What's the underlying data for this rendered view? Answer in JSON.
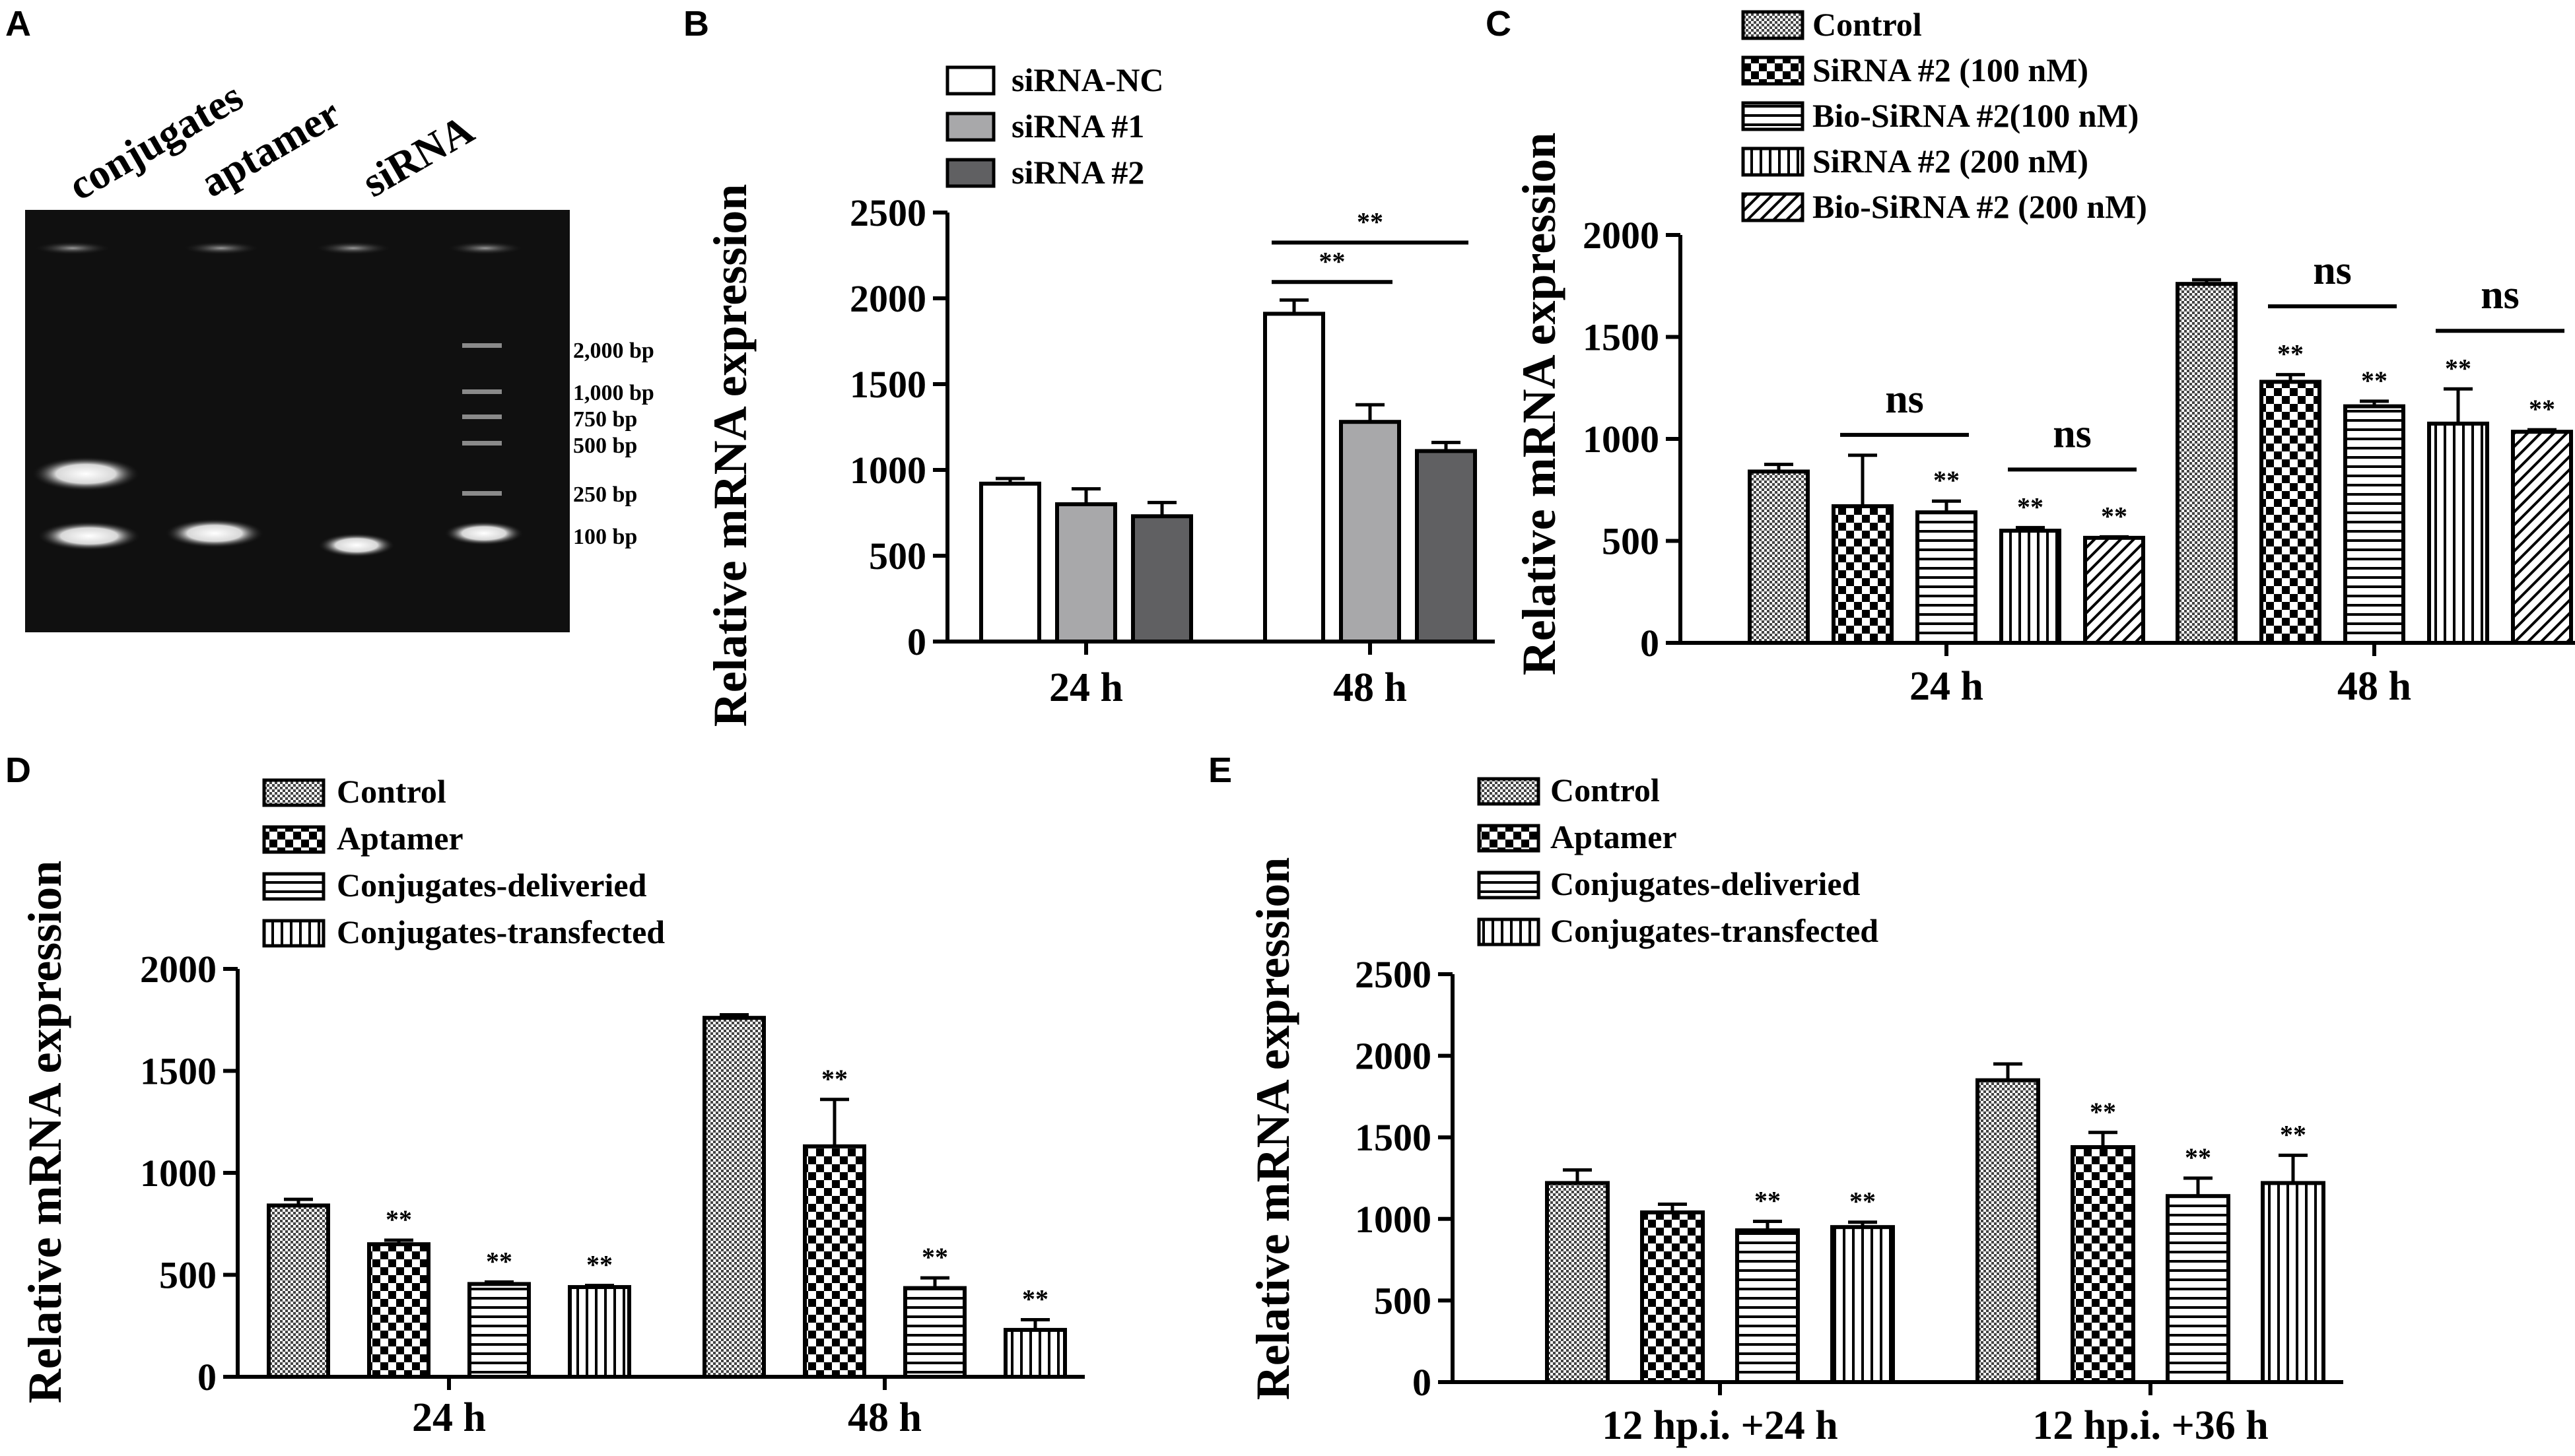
{
  "panels": [
    "A",
    "B",
    "C",
    "D",
    "E"
  ],
  "gel": {
    "lanes": [
      "conjugates",
      "aptamer",
      "siRNA"
    ],
    "markers": [
      "2,000 bp",
      "1,000 bp",
      "750 bp",
      "500 bp",
      "250 bp",
      "100 bp"
    ]
  },
  "chart_data": [
    {
      "panel": "B",
      "type": "bar",
      "ylabel": "Relative mRNA expression",
      "ylim": [
        0,
        2500
      ],
      "yticks": [
        0,
        500,
        1000,
        1500,
        2000,
        2500
      ],
      "categories": [
        "24 h",
        "48 h"
      ],
      "series": [
        {
          "name": "siRNA-NC",
          "pattern": "white",
          "values": [
            920,
            1910
          ],
          "errors": [
            30,
            80
          ]
        },
        {
          "name": "siRNA #1",
          "pattern": "lightgray",
          "values": [
            800,
            1280
          ],
          "errors": [
            90,
            100
          ]
        },
        {
          "name": "siRNA #2",
          "pattern": "darkgray",
          "values": [
            730,
            1110
          ],
          "errors": [
            80,
            50
          ]
        }
      ],
      "stars": [
        [
          "",
          ""
        ],
        [
          "",
          ""
        ],
        [
          "",
          ""
        ]
      ],
      "brackets": [
        {
          "cat": 1,
          "from": 0,
          "to": 1,
          "value": 2095,
          "label": "**"
        },
        {
          "cat": 1,
          "from": 0,
          "to": 2,
          "value": 2325,
          "label": "**"
        }
      ]
    },
    {
      "panel": "C",
      "type": "bar",
      "ylabel": "Relative mRNA expression",
      "ylim": [
        0,
        2000
      ],
      "yticks": [
        0,
        500,
        1000,
        1500,
        2000
      ],
      "categories": [
        "24 h",
        "48 h"
      ],
      "series": [
        {
          "name": "Control",
          "pattern": "dots",
          "values": [
            840,
            1760
          ],
          "errors": [
            35,
            20
          ]
        },
        {
          "name": "SiRNA #2 (100 nM)",
          "pattern": "checker",
          "values": [
            670,
            1280
          ],
          "errors": [
            250,
            35
          ]
        },
        {
          "name": "Bio-SiRNA #2(100 nM)",
          "pattern": "hlines",
          "values": [
            640,
            1160
          ],
          "errors": [
            55,
            25
          ]
        },
        {
          "name": "SiRNA #2 (200 nM)",
          "pattern": "vlines",
          "values": [
            550,
            1075
          ],
          "errors": [
            15,
            170
          ]
        },
        {
          "name": "Bio-SiRNA #2 (200 nM)",
          "pattern": "diag",
          "values": [
            515,
            1035
          ],
          "errors": [
            5,
            10
          ]
        }
      ],
      "stars": [
        [
          "",
          ""
        ],
        [
          "",
          "**"
        ],
        [
          "**",
          "**"
        ],
        [
          "**",
          "**"
        ],
        [
          "**",
          "**"
        ]
      ],
      "brackets": [
        {
          "cat": 0,
          "from": 1,
          "to": 2,
          "value": 1020,
          "label": "ns"
        },
        {
          "cat": 0,
          "from": 3,
          "to": 4,
          "value": 850,
          "label": "ns"
        },
        {
          "cat": 1,
          "from": 1,
          "to": 2,
          "value": 1650,
          "label": "ns"
        },
        {
          "cat": 1,
          "from": 3,
          "to": 4,
          "value": 1530,
          "label": "ns"
        }
      ]
    },
    {
      "panel": "D",
      "type": "bar",
      "ylabel": "Relative mRNA expression",
      "ylim": [
        0,
        2000
      ],
      "yticks": [
        0,
        500,
        1000,
        1500,
        2000
      ],
      "categories": [
        "24 h",
        "48 h"
      ],
      "series": [
        {
          "name": "Control",
          "pattern": "dots",
          "values": [
            840,
            1760
          ],
          "errors": [
            30,
            15
          ]
        },
        {
          "name": "Aptamer",
          "pattern": "checker",
          "values": [
            650,
            1130
          ],
          "errors": [
            20,
            230
          ]
        },
        {
          "name": "Conjugates-deliveried",
          "pattern": "hlines",
          "values": [
            455,
            435
          ],
          "errors": [
            10,
            50
          ]
        },
        {
          "name": "Conjugates-transfected",
          "pattern": "vlines",
          "values": [
            440,
            230
          ],
          "errors": [
            8,
            50
          ]
        }
      ],
      "stars": [
        [
          "",
          ""
        ],
        [
          "**",
          "**"
        ],
        [
          "**",
          "**"
        ],
        [
          "**",
          "**"
        ]
      ],
      "brackets": []
    },
    {
      "panel": "E",
      "type": "bar",
      "ylabel": "Relative mRNA expression",
      "ylim": [
        0,
        2500
      ],
      "yticks": [
        0,
        500,
        1000,
        1500,
        2000,
        2500
      ],
      "categories": [
        "12 hp.i. +24 h",
        "12 hp.i. +36 h"
      ],
      "series": [
        {
          "name": "Control",
          "pattern": "dots",
          "values": [
            1220,
            1850
          ],
          "errors": [
            80,
            100
          ]
        },
        {
          "name": "Aptamer",
          "pattern": "checker",
          "values": [
            1040,
            1440
          ],
          "errors": [
            50,
            90
          ]
        },
        {
          "name": "Conjugates-deliveried",
          "pattern": "hlines",
          "values": [
            930,
            1140
          ],
          "errors": [
            55,
            110
          ]
        },
        {
          "name": "Conjugates-transfected",
          "pattern": "vlines",
          "values": [
            950,
            1220
          ],
          "errors": [
            30,
            170
          ]
        }
      ],
      "stars": [
        [
          "",
          ""
        ],
        [
          "",
          "**"
        ],
        [
          "**",
          "**"
        ],
        [
          "**",
          "**"
        ]
      ],
      "brackets": []
    }
  ]
}
